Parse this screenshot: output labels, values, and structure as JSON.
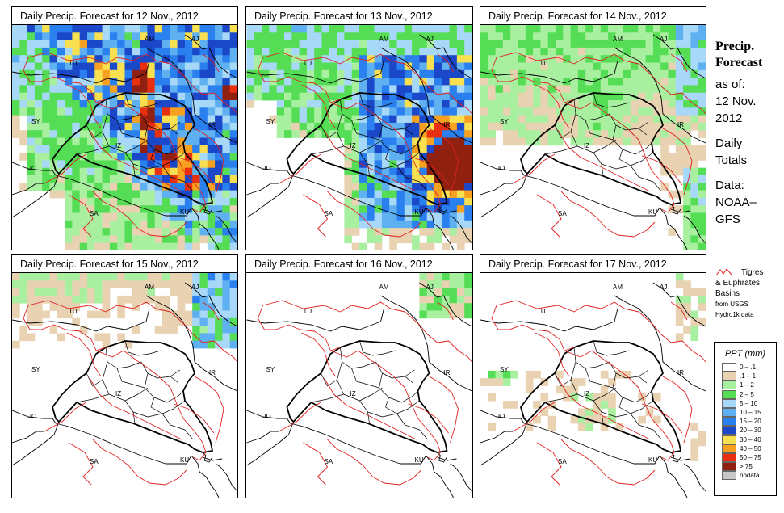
{
  "panels": [
    {
      "title": "Daily Precip. Forecast for  12 Nov., 2012",
      "intensity": "heavy"
    },
    {
      "title": "Daily Precip. Forecast for  13 Nov., 2012",
      "intensity": "heavy-east"
    },
    {
      "title": "Daily Precip. Forecast for  14 Nov., 2012",
      "intensity": "light"
    },
    {
      "title": "Daily Precip. Forecast for  15 Nov., 2012",
      "intensity": "light-north"
    },
    {
      "title": "Daily Precip. Forecast for  16 Nov., 2012",
      "intensity": "minimal"
    },
    {
      "title": "Daily Precip. Forecast for  17 Nov., 2012",
      "intensity": "scattered"
    }
  ],
  "map_labels": {
    "am": "AM",
    "aj": "AJ",
    "tu": "TU",
    "sy": "SY",
    "ir": "IR",
    "iz": "IZ",
    "jo": "JO",
    "sa": "SA",
    "ku": "KU"
  },
  "sidebar": {
    "title_line1": "Precip.",
    "title_line2": "Forecast",
    "asof": "as of:",
    "date_line1": "12 Nov.",
    "date_line2": "2012",
    "daily_line1": "Daily",
    "daily_line2": "Totals",
    "data_line1": "Data:",
    "data_line2": "NOAA–",
    "data_line3": "GFS"
  },
  "basin_note": {
    "line1": "Tigres",
    "line2": "& Euphrates",
    "line3": "Basins",
    "line4": "from USGS",
    "line5": "Hydro1k data"
  },
  "legend": {
    "title": "PPT (mm)",
    "items": [
      {
        "label": "0 – .1",
        "color": "#ffffff"
      },
      {
        "label": ".1 – 1",
        "color": "#e8d2b2"
      },
      {
        "label": "1 – 2",
        "color": "#a8f0a0"
      },
      {
        "label": "2 – 5",
        "color": "#55dd55"
      },
      {
        "label": "5 – 10",
        "color": "#a8d8f8"
      },
      {
        "label": "10 – 15",
        "color": "#5fb0f0"
      },
      {
        "label": "15 – 20",
        "color": "#2a80ee"
      },
      {
        "label": "20 – 30",
        "color": "#1a48c8"
      },
      {
        "label": "30 – 40",
        "color": "#f8e050"
      },
      {
        "label": "40 – 50",
        "color": "#f8a020"
      },
      {
        "label": "50 – 75",
        "color": "#e83010"
      },
      {
        "label": "> 75",
        "color": "#902010"
      },
      {
        "label": "nodata",
        "color": "#c8c8c8"
      }
    ]
  }
}
